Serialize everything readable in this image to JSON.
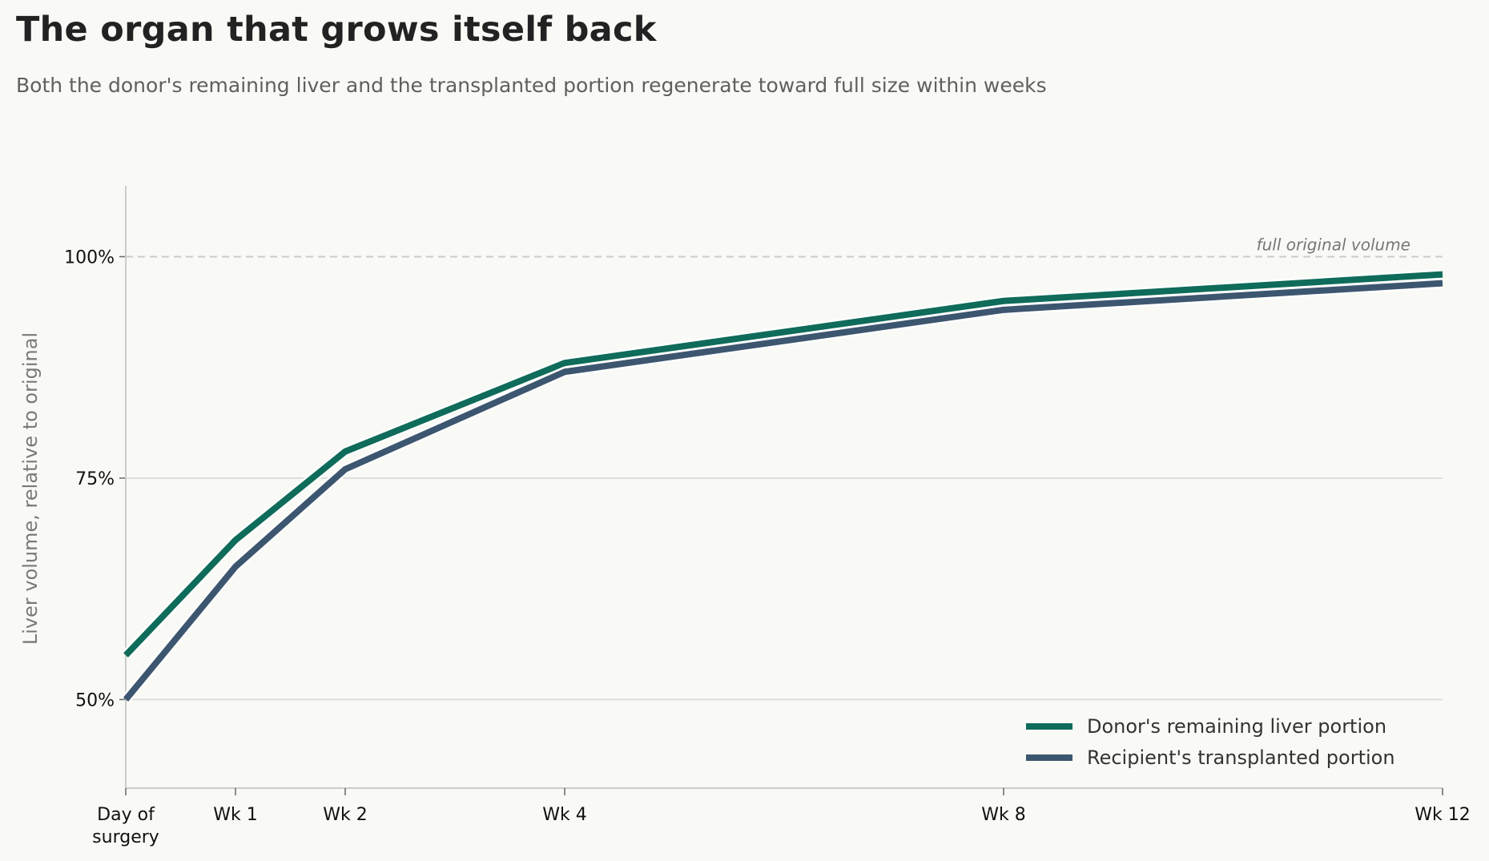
{
  "header": {
    "title": "The organ that grows itself back",
    "subtitle": "Both the donor's remaining liver and the transplanted portion regenerate toward full size within weeks"
  },
  "chart_data": {
    "type": "line",
    "title": "The organ that grows itself back",
    "subtitle": "Both the donor's remaining liver and the transplanted portion regenerate toward full size within weeks",
    "xlabel": "",
    "ylabel": "Liver volume, relative to original",
    "x": [
      0,
      1,
      2,
      4,
      8,
      12
    ],
    "x_tick_labels": [
      [
        "Day of",
        "surgery"
      ],
      [
        "Wk 1"
      ],
      [
        "Wk 2"
      ],
      [
        "Wk 4"
      ],
      [
        "Wk 8"
      ],
      [
        "Wk 12"
      ]
    ],
    "xlim": [
      0,
      12
    ],
    "ylim": [
      40,
      108
    ],
    "y_ticks": [
      50,
      75,
      100
    ],
    "y_tick_labels": [
      "50%",
      "75%",
      "100%"
    ],
    "grid": "horizontal",
    "reference_line": {
      "value": 100,
      "label": "full original volume",
      "style": "dashed"
    },
    "legend_position": "lower-right",
    "series": [
      {
        "name": "Donor's remaining liver portion",
        "color": "#0f6b5a",
        "values": [
          55,
          68,
          78,
          88,
          95,
          98
        ]
      },
      {
        "name": "Recipient's transplanted portion",
        "color": "#3d5670",
        "values": [
          50,
          65,
          76,
          87,
          94,
          97
        ]
      }
    ],
    "colors": {
      "background": "#f9f9f6",
      "grid": "#dedede",
      "axis": "#cccccc",
      "reference": "#cccccc"
    }
  }
}
